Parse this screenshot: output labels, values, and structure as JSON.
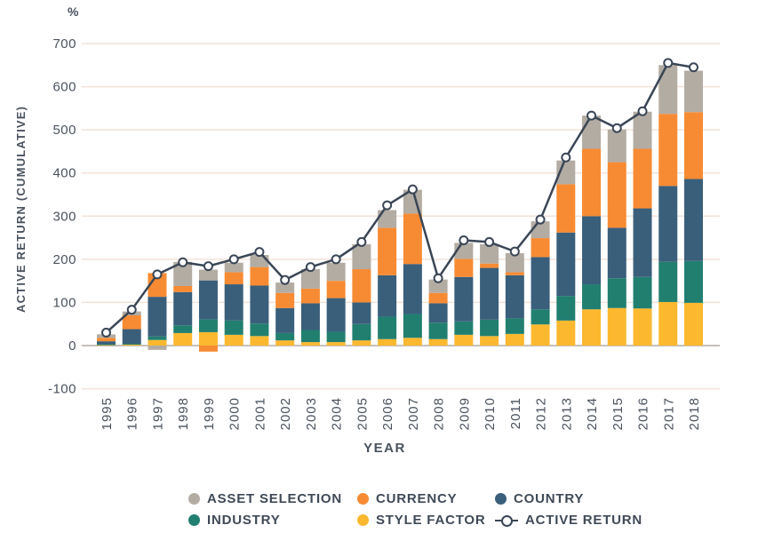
{
  "unit": "%",
  "y_axis": {
    "label": "ACTIVE RETURN (CUMULATIVE)",
    "ticks": [
      700,
      600,
      500,
      400,
      300,
      200,
      100,
      0,
      -100
    ]
  },
  "x_axis": {
    "label": "YEAR"
  },
  "colors": {
    "style_factor": "#fcb82f",
    "industry": "#217f70",
    "country": "#3a5f7b",
    "currency": "#f78b33",
    "asset_selection": "#b3aca3",
    "active_return_line": "#3a4656",
    "text": "#49525e",
    "gridline": "#f3e3d8",
    "zero_line": "#c6c1ba"
  },
  "legend": {
    "items": [
      {
        "id": "asset-selection",
        "label": "ASSET SELECTION",
        "color": "#b3aca3",
        "type": "dot"
      },
      {
        "id": "currency",
        "label": "CURRENCY",
        "color": "#f78b33",
        "type": "dot"
      },
      {
        "id": "country",
        "label": "COUNTRY",
        "color": "#3a5f7b",
        "type": "dot"
      },
      {
        "id": "industry",
        "label": "INDUSTRY",
        "color": "#217f70",
        "type": "dot"
      },
      {
        "id": "style-factor",
        "label": "STYLE FACTOR",
        "color": "#fcb82f",
        "type": "dot"
      },
      {
        "id": "active-return",
        "label": "ACTIVE RETURN",
        "color": "#3a4656",
        "type": "line-marker"
      }
    ]
  },
  "chart_data": {
    "type": "bar",
    "stacked": true,
    "title": "",
    "xlabel": "YEAR",
    "ylabel": "ACTIVE RETURN (CUMULATIVE)",
    "unit": "%",
    "ylim": [
      -100,
      700
    ],
    "grid": true,
    "legend_position": "bottom",
    "categories": [
      1995,
      1996,
      1997,
      1998,
      1999,
      2000,
      2001,
      2002,
      2003,
      2004,
      2005,
      2006,
      2007,
      2008,
      2009,
      2010,
      2011,
      2012,
      2013,
      2014,
      2015,
      2016,
      2017,
      2018
    ],
    "series": [
      {
        "name": "STYLE FACTOR",
        "color": "#fcb82f",
        "values": [
          1,
          2,
          13,
          29,
          31,
          25,
          22,
          12,
          8,
          8,
          12,
          15,
          18,
          15,
          25,
          22,
          27,
          49,
          58,
          84,
          87,
          86,
          101,
          99
        ]
      },
      {
        "name": "INDUSTRY",
        "color": "#217f70",
        "values": [
          2,
          2,
          8,
          18,
          30,
          33,
          29,
          17,
          28,
          24,
          38,
          52,
          55,
          38,
          31,
          38,
          36,
          35,
          57,
          58,
          69,
          73,
          93,
          97
        ]
      },
      {
        "name": "COUNTRY",
        "color": "#3a5f7b",
        "values": [
          7,
          34,
          92,
          77,
          90,
          84,
          88,
          58,
          62,
          78,
          50,
          96,
          116,
          45,
          103,
          120,
          100,
          121,
          147,
          158,
          117,
          159,
          176,
          190
        ]
      },
      {
        "name": "CURRENCY",
        "color": "#f78b33",
        "values": [
          8,
          32,
          55,
          14,
          -14,
          28,
          43,
          35,
          34,
          40,
          77,
          110,
          117,
          24,
          42,
          10,
          7,
          44,
          112,
          156,
          152,
          138,
          167,
          155
        ]
      },
      {
        "name": "ASSET SELECTION",
        "color": "#b3aca3",
        "values": [
          8,
          9,
          -10,
          56,
          25,
          22,
          28,
          24,
          45,
          42,
          58,
          41,
          55,
          31,
          37,
          45,
          44,
          39,
          55,
          77,
          76,
          86,
          113,
          96
        ]
      }
    ],
    "line_series": {
      "name": "ACTIVE RETURN",
      "color": "#3a4656",
      "values": [
        30,
        83,
        165,
        193,
        184,
        200,
        217,
        152,
        182,
        200,
        240,
        325,
        362,
        156,
        244,
        240,
        218,
        292,
        436,
        533,
        504,
        543,
        655,
        645
      ]
    }
  }
}
